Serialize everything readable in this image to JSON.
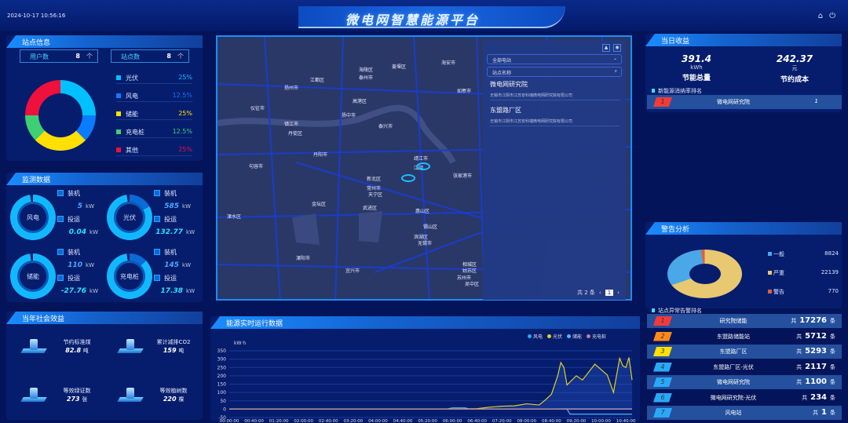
{
  "header": {
    "datetime": "2024-10-17 10:56:16",
    "title": "微电网智慧能源平台",
    "icons": [
      "home-icon",
      "power-icon"
    ]
  },
  "site_info": {
    "title": "站点信息",
    "user_count_label": "用户数",
    "user_count": "8",
    "user_unit": "个",
    "site_count_label": "站点数",
    "site_count": "8",
    "site_unit": "个",
    "types": [
      {
        "label": "光伏",
        "pct": "25%",
        "value": 25,
        "color": "#00c0ff"
      },
      {
        "label": "风电",
        "pct": "12.5%",
        "value": 12.5,
        "color": "#0a7cff"
      },
      {
        "label": "储能",
        "pct": "25%",
        "value": 25,
        "color": "#ffe000"
      },
      {
        "label": "充电桩",
        "pct": "12.5%",
        "value": 12.5,
        "color": "#3ecf75"
      },
      {
        "label": "其他",
        "pct": "25%",
        "value": 25,
        "color": "#f0103c"
      }
    ]
  },
  "monitor": {
    "title": "监测数据",
    "installed_label": "装机",
    "running_label": "投运",
    "unit": "kW",
    "items": [
      {
        "name": "风电",
        "installed": "5",
        "running": "0.04",
        "dark_pct": 0
      },
      {
        "name": "光伏",
        "installed": "585",
        "running": "132.77",
        "dark_pct": 17
      },
      {
        "name": "储能",
        "installed": "110",
        "running": "-27.76",
        "dark_pct": 0
      },
      {
        "name": "充电桩",
        "installed": "145",
        "running": "17.38",
        "dark_pct": 13
      }
    ]
  },
  "social": {
    "title": "当年社会效益",
    "items": [
      {
        "label": "节约标准煤",
        "value": "82.8",
        "unit": "吨"
      },
      {
        "label": "累计减排CO2",
        "value": "159",
        "unit": "吨"
      },
      {
        "label": "等效绿证数",
        "value": "273",
        "unit": "张"
      },
      {
        "label": "等效植树数",
        "value": "220",
        "unit": "棵"
      }
    ]
  },
  "map": {
    "station_select": "全部电站",
    "search_placeholder": "站点名称",
    "sites": [
      {
        "name": "微电网研究院",
        "address": "无锡市江阴市江苏安科瑞微电网研究院有限公司"
      },
      {
        "name": "东盟路厂区",
        "address": "无锡市江阴市江苏安科瑞微电网研究院有限公司"
      }
    ],
    "total": "共 2 条",
    "page": "1",
    "labels": [
      "扬州市",
      "江都区",
      "海陵区",
      "泰州市",
      "姜堰区",
      "海安市",
      "如皋市",
      "高港区",
      "仪征市",
      "扬中市",
      "镇江市",
      "丹徒区",
      "泰兴市",
      "丹阳市",
      "句容市",
      "靖江市",
      "江阴",
      "张家港市",
      "新北区",
      "常州市",
      "天宁区",
      "金坛区",
      "武进区",
      "惠山区",
      "锡山区",
      "溧水区",
      "滨湖区",
      "无锡市",
      "溧阳市",
      "宜兴市",
      "相城区",
      "姑苏区",
      "苏州市",
      "吴中区"
    ]
  },
  "energy": {
    "title": "能源实时运行数据"
  },
  "daily": {
    "title": "当日收益",
    "energy_value": "391.4",
    "energy_unit": "kWh",
    "energy_label": "节能总量",
    "cost_value": "242.37",
    "cost_unit": "元",
    "cost_label": "节约成本",
    "ranking_title": "新能源消纳率排名",
    "ranking": [
      {
        "rank": "1",
        "name": "微电网研究院",
        "value": "1"
      }
    ]
  },
  "warning": {
    "title": "警告分析",
    "items": [
      {
        "label": "一般",
        "value": "8824",
        "count": 8824,
        "color": "#4aa8e8"
      },
      {
        "label": "严重",
        "value": "22139",
        "count": 22139,
        "color": "#e8c870"
      },
      {
        "label": "警告",
        "value": "770",
        "count": 770,
        "color": "#e0603a"
      }
    ],
    "ranking_title": "站点异常告警排名",
    "prefix": "共",
    "unit": "条",
    "ranking": [
      {
        "rank": "1",
        "name": "研究院储能",
        "value": "17276",
        "color": "#f23a3a"
      },
      {
        "rank": "2",
        "name": "东盟路储能站",
        "value": "5712",
        "color": "#ff8a1a"
      },
      {
        "rank": "3",
        "name": "东盟路厂区",
        "value": "5293",
        "color": "#ffe000"
      },
      {
        "rank": "4",
        "name": "东盟路厂区-光伏",
        "value": "2117",
        "color": "#2aa8f8"
      },
      {
        "rank": "5",
        "name": "微电网研究院",
        "value": "1100",
        "color": "#2aa8f8"
      },
      {
        "rank": "6",
        "name": "微电网研究院-光伏",
        "value": "234",
        "color": "#2aa8f8"
      },
      {
        "rank": "7",
        "name": "风电站",
        "value": "1",
        "color": "#2aa8f8"
      }
    ]
  },
  "chart_data": {
    "type": "line",
    "ylabel": "kW·h",
    "ylim": [
      -50,
      350
    ],
    "yticks": [
      -50,
      0,
      50,
      100,
      150,
      200,
      250,
      300,
      350
    ],
    "xticks": [
      "00:00:00",
      "00:40:00",
      "01:20:00",
      "02:00:00",
      "02:40:00",
      "03:20:00",
      "04:00:00",
      "04:40:00",
      "05:20:00",
      "06:00:00",
      "06:40:00",
      "07:20:00",
      "08:00:00",
      "08:40:00",
      "09:20:00",
      "10:00:00",
      "10:40:00"
    ],
    "grid": true,
    "legend": "top-right",
    "series": [
      {
        "name": "风电",
        "color": "#1ab0ff",
        "points": [
          [
            "00:00",
            2
          ],
          [
            "06:00",
            2
          ],
          [
            "08:40",
            2
          ],
          [
            "09:10",
            3
          ],
          [
            "10:50",
            3
          ]
        ]
      },
      {
        "name": "光伏",
        "color": "#e0d020",
        "points": [
          [
            "00:00",
            0
          ],
          [
            "06:00",
            0
          ],
          [
            "06:40",
            3
          ],
          [
            "07:00",
            12
          ],
          [
            "07:20",
            18
          ],
          [
            "07:40",
            20
          ],
          [
            "08:00",
            32
          ],
          [
            "08:20",
            25
          ],
          [
            "08:30",
            55
          ],
          [
            "08:40",
            90
          ],
          [
            "08:50",
            200
          ],
          [
            "08:55",
            280
          ],
          [
            "09:00",
            250
          ],
          [
            "09:05",
            145
          ],
          [
            "09:20",
            200
          ],
          [
            "09:30",
            175
          ],
          [
            "09:50",
            270
          ],
          [
            "10:10",
            205
          ],
          [
            "10:20",
            100
          ],
          [
            "10:30",
            305
          ],
          [
            "10:35",
            260
          ],
          [
            "10:40",
            250
          ],
          [
            "10:45",
            310
          ],
          [
            "10:50",
            175
          ]
        ]
      },
      {
        "name": "储能",
        "color": "#4ab8ff",
        "points": [
          [
            "00:00",
            0
          ],
          [
            "05:50",
            0
          ],
          [
            "06:00",
            8
          ],
          [
            "06:20",
            8
          ],
          [
            "06:30",
            0
          ],
          [
            "09:05",
            0
          ],
          [
            "09:10",
            -30
          ],
          [
            "10:50",
            -30
          ]
        ]
      },
      {
        "name": "充电桩",
        "color": "#c08090",
        "points": [
          [
            "00:00",
            0
          ],
          [
            "10:50",
            0
          ]
        ]
      }
    ]
  }
}
